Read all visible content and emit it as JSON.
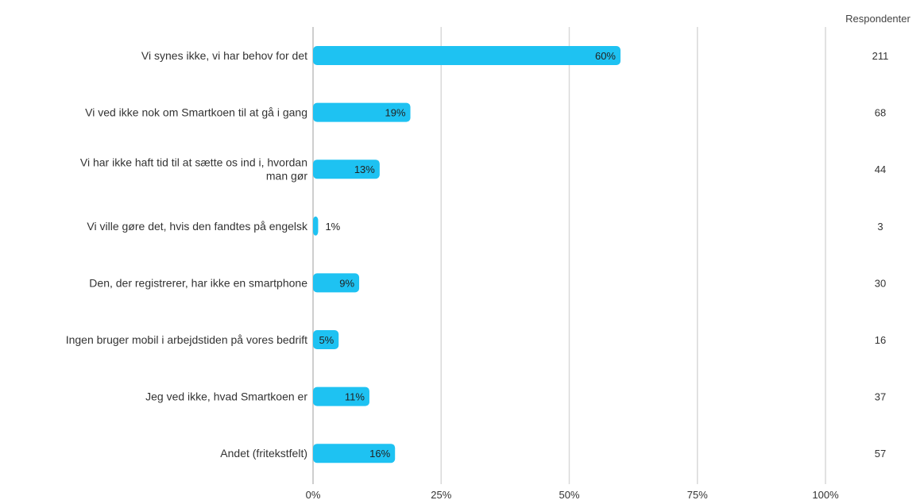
{
  "chart_data": {
    "type": "bar",
    "orientation": "horizontal",
    "categories": [
      [
        "Vi synes ikke, vi har behov for det"
      ],
      [
        "Vi ved ikke nok om Smartkoen til at gå i gang"
      ],
      [
        "Vi har ikke haft tid til at sætte os ind i, hvordan",
        "man gør"
      ],
      [
        "Vi ville gøre det, hvis den fandtes på engelsk"
      ],
      [
        "Den, der registrerer, har ikke en smartphone"
      ],
      [
        "Ingen bruger mobil i arbejdstiden på vores bedrift"
      ],
      [
        "Jeg ved ikke, hvad Smartkoen er"
      ],
      [
        "Andet (fritekstfelt)"
      ]
    ],
    "values": [
      60,
      19,
      13,
      1,
      9,
      5,
      11,
      16
    ],
    "value_labels": [
      "60%",
      "19%",
      "13%",
      "1%",
      "9%",
      "5%",
      "11%",
      "16%"
    ],
    "respondents_header": "Respondenter",
    "respondents": [
      "211",
      "68",
      "44",
      "3",
      "30",
      "16",
      "37",
      "57"
    ],
    "xticks": [
      0,
      25,
      50,
      75,
      100
    ],
    "xtick_labels": [
      "0%",
      "25%",
      "50%",
      "75%",
      "100%"
    ],
    "xlim": [
      0,
      100
    ],
    "grid": true,
    "bar_color": "#1ec2f2",
    "grid_color": "#d9d9d9"
  }
}
